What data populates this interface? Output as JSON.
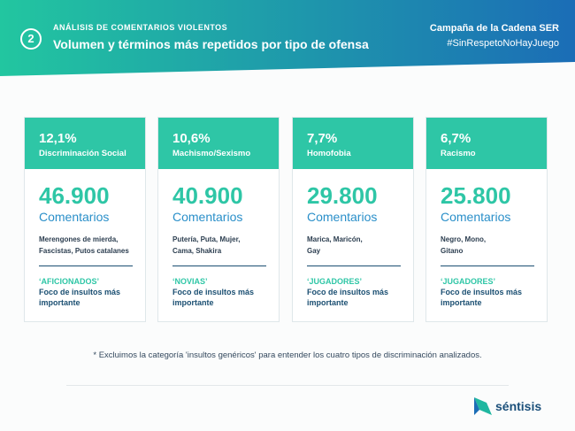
{
  "header": {
    "step": "2",
    "kicker": "ANÁLISIS DE COMENTARIOS VIOLENTOS",
    "title": "Volumen y términos más repetidos por tipo de ofensa",
    "campaign": "Campaña de la Cadena SER",
    "hashtag": "#SinRespetoNoHayJuego"
  },
  "cards": [
    {
      "percent": "12,1%",
      "name": "Discriminación Social",
      "count": "46.900",
      "count_label": "Comentarios",
      "terms": [
        "Merengones de mierda,",
        "Fascistas, Putos catalanes"
      ],
      "focus": "‘AFICIONADOS’",
      "focus_text": [
        "Foco de insultos más",
        "importante"
      ]
    },
    {
      "percent": "10,6%",
      "name": "Machismo/Sexismo",
      "count": "40.900",
      "count_label": "Comentarios",
      "terms": [
        "Putería, Puta, Mujer,",
        "Cama, Shakira"
      ],
      "focus": "‘NOVIAS’",
      "focus_text": [
        "Foco de insultos más",
        "importante"
      ]
    },
    {
      "percent": "7,7%",
      "name": "Homofobia",
      "count": "29.800",
      "count_label": "Comentarios",
      "terms": [
        "Marica, Maricón,",
        "Gay"
      ],
      "focus": "‘JUGADORES’",
      "focus_text": [
        "Foco de insultos más",
        "importante"
      ]
    },
    {
      "percent": "6,7%",
      "name": "Racismo",
      "count": "25.800",
      "count_label": "Comentarios",
      "terms": [
        "Negro, Mono,",
        "Gitano"
      ],
      "focus": "‘JUGADORES’",
      "focus_text": [
        "Foco de insultos más",
        "importante"
      ]
    }
  ],
  "footnote": "* Excluimos la categoría 'insultos genéricos' para entender los cuatro tipos de discriminación analizados.",
  "logo": "séntisis"
}
